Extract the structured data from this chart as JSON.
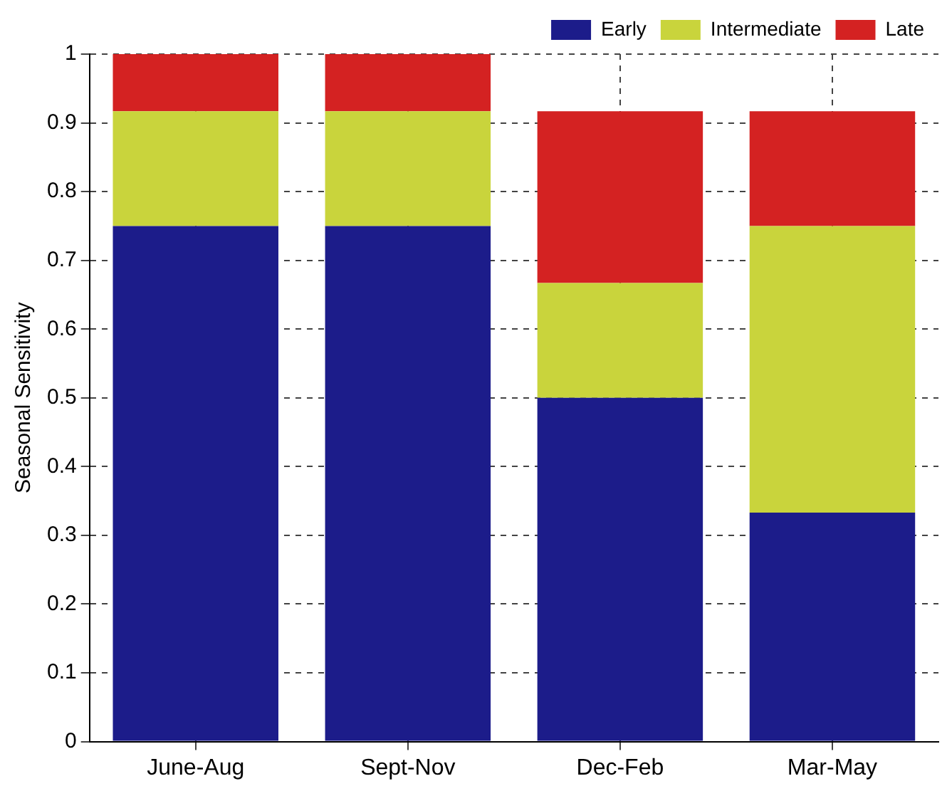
{
  "chart_data": {
    "type": "bar",
    "stacked": true,
    "ylabel": "Seasonal Sensitivity",
    "categories": [
      "June-Aug",
      "Sept-Nov",
      "Dec-Feb",
      "Mar-May"
    ],
    "series": [
      {
        "name": "Early",
        "color": "#1c1c8a",
        "values": [
          0.75,
          0.75,
          0.5,
          0.333
        ]
      },
      {
        "name": "Intermediate",
        "color": "#c9d43c",
        "values": [
          0.167,
          0.167,
          0.167,
          0.417
        ]
      },
      {
        "name": "Late",
        "color": "#d42222",
        "values": [
          0.083,
          0.083,
          0.25,
          0.167
        ]
      }
    ],
    "ylim": [
      0,
      1
    ],
    "yticks": [
      0,
      0.1,
      0.2,
      0.3,
      0.4,
      0.5,
      0.6,
      0.7,
      0.8,
      0.9,
      1
    ],
    "grid": true,
    "legend": "top right"
  }
}
